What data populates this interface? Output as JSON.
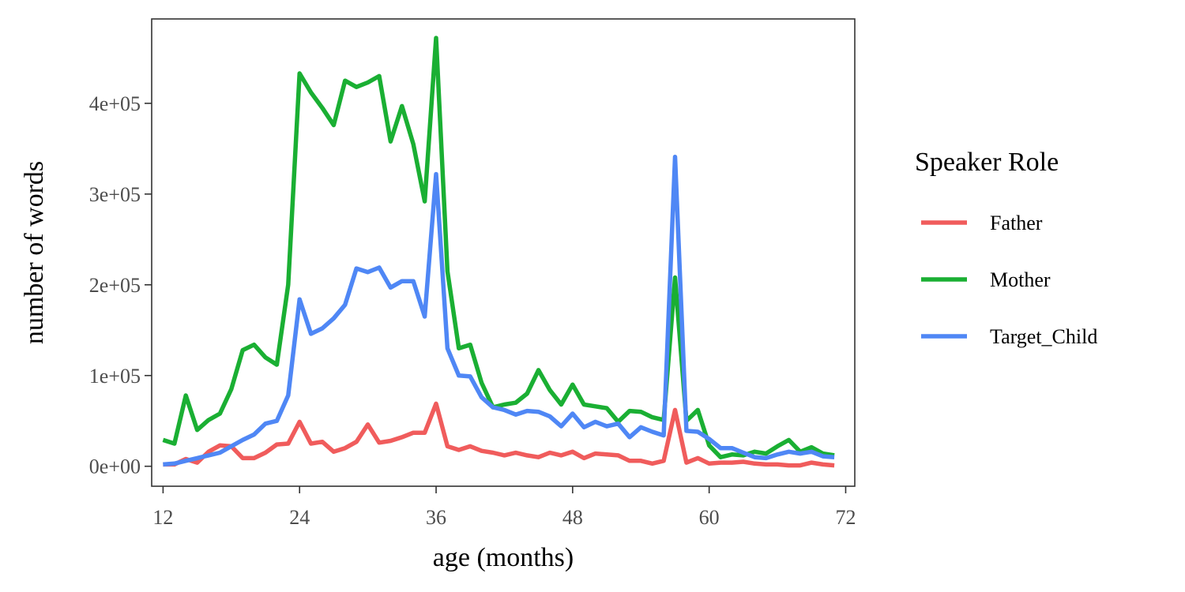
{
  "chart_data": {
    "type": "line",
    "xlabel": "age (months)",
    "ylabel": "number of words",
    "xlim": [
      11,
      72.8
    ],
    "ylim": [
      -22000,
      493000
    ],
    "x_ticks": [
      12,
      24,
      36,
      48,
      60,
      72
    ],
    "y_ticks": [
      0,
      100000,
      200000,
      300000,
      400000
    ],
    "x_tick_labels": [
      "12",
      "24",
      "36",
      "48",
      "60",
      "72"
    ],
    "y_tick_labels": [
      "0e+00",
      "1e+05",
      "2e+05",
      "3e+05",
      "4e+05"
    ],
    "grid": false,
    "legend_position": "right",
    "legend_title": "Speaker Role",
    "x": [
      12,
      13,
      14,
      15,
      16,
      17,
      18,
      19,
      20,
      21,
      22,
      23,
      24,
      25,
      26,
      27,
      28,
      29,
      30,
      31,
      32,
      33,
      34,
      35,
      36,
      37,
      38,
      39,
      40,
      41,
      42,
      43,
      44,
      45,
      46,
      47,
      48,
      49,
      50,
      51,
      52,
      53,
      54,
      55,
      56,
      57,
      58,
      59,
      60,
      61,
      62,
      63,
      64,
      65,
      66,
      67,
      68,
      69,
      70,
      71
    ],
    "series": [
      {
        "name": "Father",
        "color": "#F05C5C",
        "values": [
          2000,
          2000,
          8000,
          4000,
          16000,
          23000,
          22000,
          9000,
          9000,
          15000,
          24000,
          25000,
          49000,
          25000,
          27000,
          16000,
          20000,
          27000,
          46000,
          26000,
          28000,
          32000,
          37000,
          37000,
          69000,
          22000,
          18000,
          22000,
          17000,
          15000,
          12000,
          15000,
          12000,
          10000,
          15000,
          12000,
          16000,
          9000,
          14000,
          13000,
          12000,
          6000,
          6000,
          3000,
          6000,
          62000,
          4000,
          9000,
          3000,
          4000,
          4000,
          5000,
          3000,
          2000,
          2000,
          1000,
          1000,
          4000,
          2000,
          1000
        ]
      },
      {
        "name": "Mother",
        "color": "#1AAF33",
        "values": [
          29000,
          25000,
          78000,
          40000,
          51000,
          58000,
          85000,
          128000,
          134000,
          120000,
          112000,
          200000,
          433000,
          412000,
          395000,
          376000,
          425000,
          418000,
          423000,
          430000,
          358000,
          397000,
          355000,
          292000,
          472000,
          215000,
          130000,
          134000,
          92000,
          65000,
          68000,
          70000,
          80000,
          106000,
          84000,
          68000,
          90000,
          68000,
          66000,
          64000,
          49000,
          61000,
          60000,
          54000,
          51000,
          208000,
          50000,
          62000,
          23000,
          10000,
          13000,
          12000,
          16000,
          14000,
          22000,
          29000,
          16000,
          21000,
          14000,
          12000
        ]
      },
      {
        "name": "Target_Child",
        "color": "#4F87F5",
        "values": [
          2000,
          3000,
          6000,
          9000,
          12000,
          15000,
          22000,
          29000,
          35000,
          47000,
          50000,
          78000,
          184000,
          146000,
          152000,
          163000,
          178000,
          218000,
          214000,
          219000,
          197000,
          204000,
          204000,
          165000,
          322000,
          130000,
          100000,
          99000,
          76000,
          65000,
          62000,
          57000,
          61000,
          60000,
          55000,
          44000,
          58000,
          43000,
          49000,
          44000,
          47000,
          32000,
          43000,
          38000,
          34000,
          341000,
          39000,
          38000,
          30000,
          20000,
          20000,
          15000,
          10000,
          9000,
          13000,
          16000,
          14000,
          16000,
          11000,
          10000
        ]
      }
    ]
  }
}
